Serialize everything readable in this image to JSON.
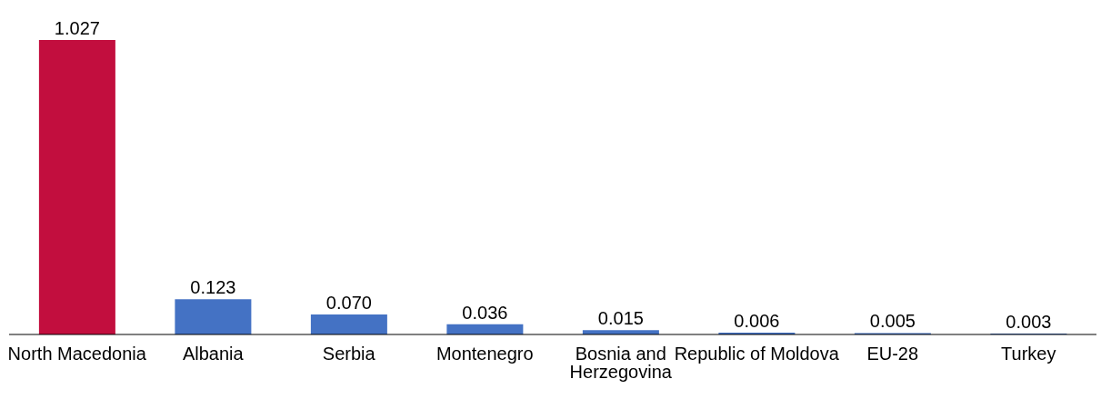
{
  "chart_data": {
    "type": "bar",
    "categories": [
      "North Macedonia",
      "Albania",
      "Serbia",
      "Montenegro",
      "Bosnia and Herzegovina",
      "Republic of Moldova",
      "EU-28",
      "Turkey"
    ],
    "values": [
      1.027,
      0.123,
      0.07,
      0.036,
      0.015,
      0.006,
      0.005,
      0.003
    ],
    "value_labels": [
      "1.027",
      "0.123",
      "0.070",
      "0.036",
      "0.015",
      "0.006",
      "0.005",
      "0.003"
    ],
    "colors": [
      "#c20e3e",
      "#4472c4",
      "#4472c4",
      "#4472c4",
      "#4472c4",
      "#4472c4",
      "#4472c4",
      "#4472c4"
    ],
    "grid": false,
    "legend": false
  }
}
